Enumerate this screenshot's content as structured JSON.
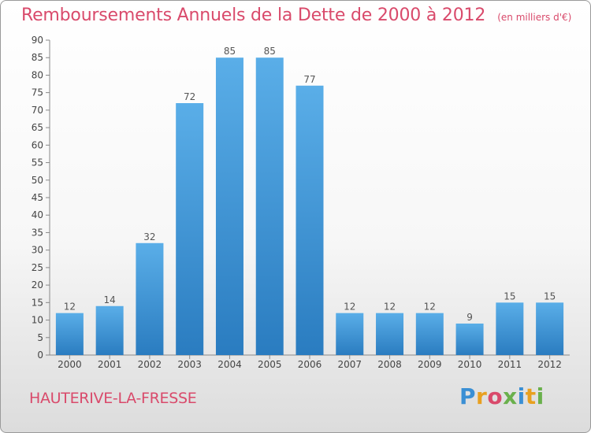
{
  "chart_data": {
    "type": "bar",
    "title": "Remboursements Annuels de la Dette de 2000 à 2012",
    "unit_note": "(en milliers d'€)",
    "categories": [
      "2000",
      "2001",
      "2002",
      "2003",
      "2004",
      "2005",
      "2006",
      "2007",
      "2008",
      "2009",
      "2010",
      "2011",
      "2012"
    ],
    "values": [
      12,
      14,
      32,
      72,
      85,
      85,
      77,
      12,
      12,
      12,
      9,
      15,
      15
    ],
    "ylim": [
      0,
      90
    ],
    "yticks": [
      0,
      5,
      10,
      15,
      20,
      25,
      30,
      35,
      40,
      45,
      50,
      55,
      60,
      65,
      70,
      75,
      80,
      85,
      90
    ],
    "grid": false,
    "bar_color": "#3a8fd4"
  },
  "footer": {
    "location": "HAUTERIVE-LA-FRESSE",
    "brand": "Proxiti"
  }
}
